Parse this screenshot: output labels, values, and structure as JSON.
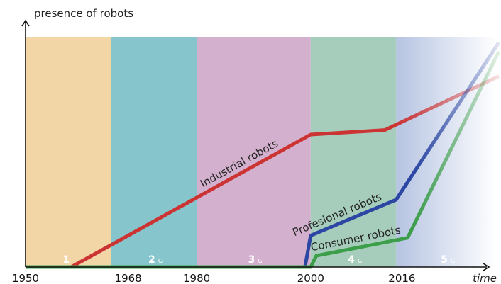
{
  "chart_data": {
    "type": "line",
    "ylabel": "presence of robots",
    "xlabel": "time",
    "x_ticks": [
      "1950",
      "1968",
      "1980",
      "2000",
      "2016"
    ],
    "x_tick_values": [
      1950,
      1968,
      1980,
      2000,
      2016
    ],
    "xlim": [
      1950,
      2033
    ],
    "ylim": [
      0,
      100
    ],
    "grid": false,
    "legend": "none",
    "bands": [
      {
        "label": "1",
        "sub": "",
        "x0": 1950,
        "x1": 1965,
        "color": "#f2d6a6"
      },
      {
        "label": "2",
        "sub": "G",
        "x0": 1965,
        "x1": 1980,
        "color": "#86c5cb"
      },
      {
        "label": "3",
        "sub": "G",
        "x0": 1980,
        "x1": 2000,
        "color": "#d3b1ce"
      },
      {
        "label": "4",
        "sub": "G",
        "x0": 2000,
        "x1": 2015,
        "color": "#a6ccbb"
      },
      {
        "label": "5",
        "sub": "G",
        "x0": 2015,
        "x1": 2033,
        "color": "#b6c4e2",
        "fade": true
      }
    ],
    "series": [
      {
        "name": "Industrial robots",
        "color": "#cc3333",
        "x": [
          1950,
          1958,
          2000,
          2013,
          2033
        ],
        "y": [
          0,
          0,
          59,
          61,
          85
        ],
        "fade_from": 2015
      },
      {
        "name": "Profesional robots",
        "color": "#2b46a3",
        "x": [
          1950,
          1999,
          2000,
          2015,
          2033
        ],
        "y": [
          0,
          0,
          14,
          30,
          100
        ],
        "fade_from": 2018
      },
      {
        "name": "Consumer robots",
        "color": "#3d9e4a",
        "x": [
          1950,
          2000,
          2001,
          2017,
          2033
        ],
        "y": [
          0,
          0,
          5,
          13,
          96
        ],
        "fade_from": 2018
      }
    ]
  }
}
